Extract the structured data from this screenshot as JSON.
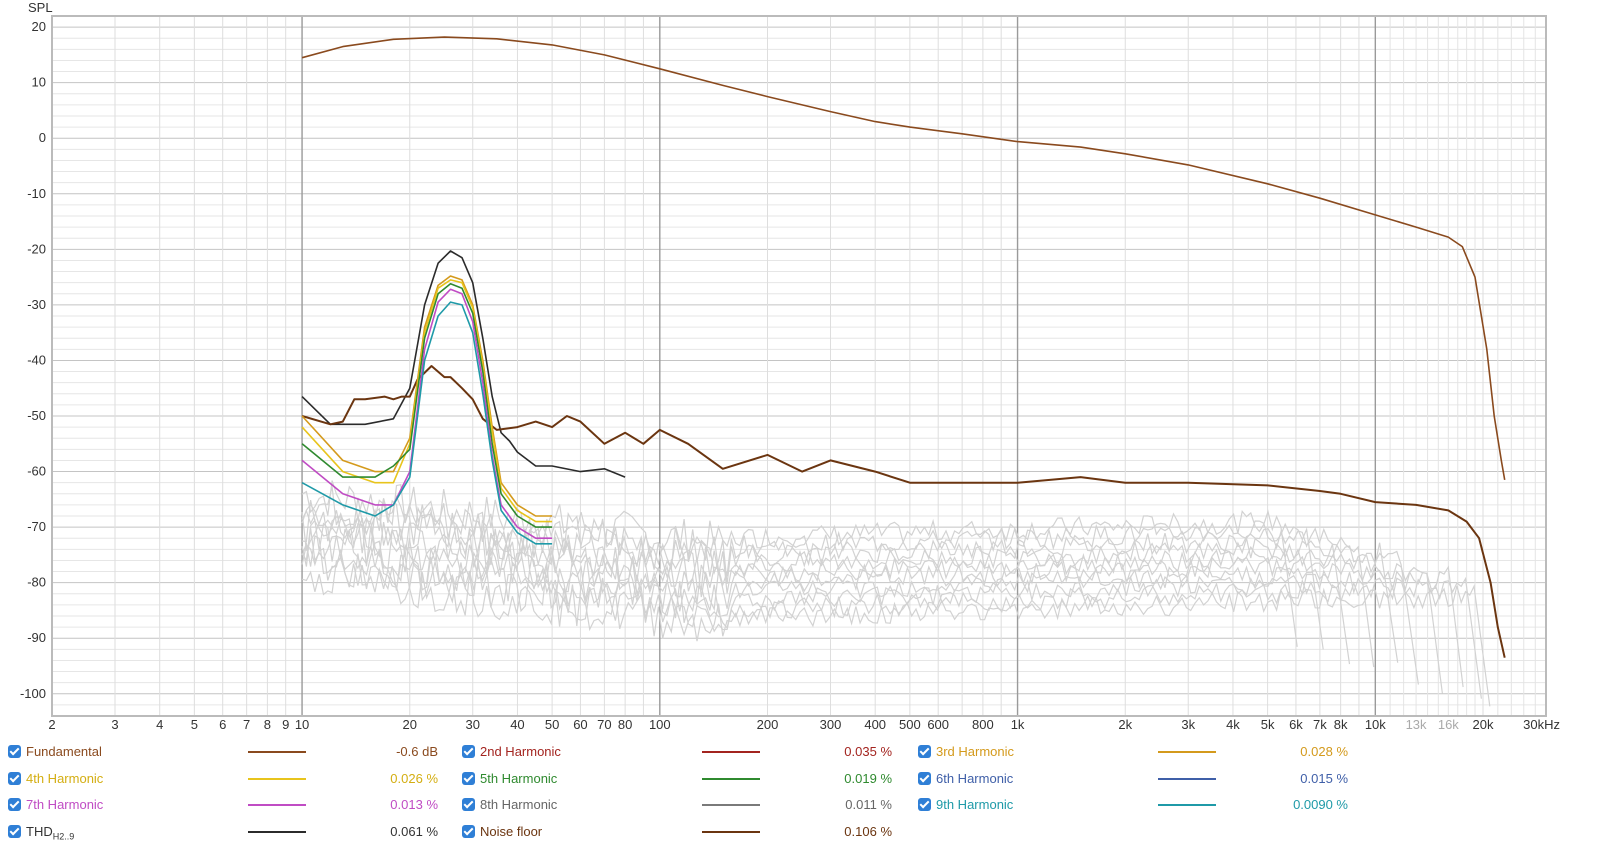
{
  "chart_data": {
    "type": "line",
    "ylabel": "SPL",
    "x_scale": "log",
    "xlim": [
      2,
      30000
    ],
    "ylim": [
      -104,
      22
    ],
    "y_ticks": [
      20,
      10,
      0,
      -10,
      -20,
      -30,
      -40,
      -50,
      -60,
      -70,
      -80,
      -90,
      -100
    ],
    "x_ticks": [
      {
        "v": 2,
        "label": "2"
      },
      {
        "v": 3,
        "label": "3"
      },
      {
        "v": 4,
        "label": "4"
      },
      {
        "v": 5,
        "label": "5"
      },
      {
        "v": 6,
        "label": "6"
      },
      {
        "v": 7,
        "label": "7"
      },
      {
        "v": 8,
        "label": "8"
      },
      {
        "v": 9,
        "label": "9"
      },
      {
        "v": 10,
        "label": "10"
      },
      {
        "v": 20,
        "label": "20"
      },
      {
        "v": 30,
        "label": "30"
      },
      {
        "v": 40,
        "label": "40"
      },
      {
        "v": 50,
        "label": "50"
      },
      {
        "v": 60,
        "label": "60"
      },
      {
        "v": 70,
        "label": "70"
      },
      {
        "v": 80,
        "label": "80"
      },
      {
        "v": 100,
        "label": "100"
      },
      {
        "v": 200,
        "label": "200"
      },
      {
        "v": 300,
        "label": "300"
      },
      {
        "v": 400,
        "label": "400"
      },
      {
        "v": 500,
        "label": "500"
      },
      {
        "v": 600,
        "label": "600"
      },
      {
        "v": 800,
        "label": "800"
      },
      {
        "v": 1000,
        "label": "1k"
      },
      {
        "v": 2000,
        "label": "2k"
      },
      {
        "v": 3000,
        "label": "3k"
      },
      {
        "v": 4000,
        "label": "4k"
      },
      {
        "v": 5000,
        "label": "5k"
      },
      {
        "v": 6000,
        "label": "6k"
      },
      {
        "v": 7000,
        "label": "7k"
      },
      {
        "v": 8000,
        "label": "8k"
      },
      {
        "v": 10000,
        "label": "10k"
      },
      {
        "v": 13000,
        "label": "13k",
        "dim": true
      },
      {
        "v": 16000,
        "label": "16k",
        "dim": true
      },
      {
        "v": 20000,
        "label": "20k"
      },
      {
        "v": 30000,
        "label": "30kHz"
      }
    ],
    "grid": true,
    "series": [
      {
        "name": "Fundamental",
        "color": "#8a4a1e",
        "value": "-0.6 dB",
        "x": [
          10,
          13,
          18,
          25,
          35,
          50,
          70,
          100,
          150,
          200,
          300,
          400,
          500,
          700,
          1000,
          1500,
          2000,
          3000,
          5000,
          7000,
          10000,
          13000,
          16000,
          17500,
          19000,
          20500,
          21500,
          22500,
          23000
        ],
        "y": [
          14.5,
          16.5,
          17.8,
          18.2,
          17.9,
          16.8,
          15.0,
          12.5,
          9.5,
          7.5,
          4.8,
          3.0,
          2.0,
          0.8,
          -0.6,
          -1.6,
          -2.8,
          -4.8,
          -8.2,
          -10.8,
          -13.8,
          -16.0,
          -17.8,
          -19.5,
          -25,
          -38,
          -50,
          -58,
          -61.5
        ]
      },
      {
        "name": "THD",
        "color": "#2b2b2b",
        "value": "0.061 %",
        "x": [
          10,
          12,
          15,
          18,
          20,
          22,
          24,
          26,
          28,
          30,
          32,
          34,
          36,
          38,
          40,
          45,
          50,
          60,
          70,
          80
        ],
        "y": [
          -46.5,
          -51.5,
          -51.5,
          -50.5,
          -45,
          -30,
          -22.5,
          -20.3,
          -21.5,
          -26,
          -36,
          -46.5,
          -53,
          -54.5,
          -56.5,
          -59,
          -59,
          -60,
          -59.5,
          -61
        ]
      },
      {
        "name": "Noise floor",
        "color": "#6b3510",
        "value": "0.106 %",
        "x": [
          10,
          12,
          13,
          14,
          15,
          17,
          18,
          19,
          20,
          21,
          23,
          25,
          26,
          28,
          30,
          32,
          35,
          40,
          45,
          50,
          55,
          60,
          70,
          80,
          90,
          100,
          120,
          150,
          200,
          250,
          300,
          400,
          500,
          700,
          1000,
          1500,
          2000,
          3000,
          5000,
          7000,
          8000,
          10000,
          13000,
          16000,
          18000,
          19500,
          21000,
          22000,
          23000
        ],
        "y": [
          -50,
          -51.5,
          -51,
          -47,
          -47,
          -46.5,
          -47,
          -46.5,
          -46.5,
          -43.5,
          -41,
          -43,
          -43,
          -45,
          -47,
          -50.5,
          -52.5,
          -52,
          -51,
          -52,
          -50,
          -51,
          -55,
          -53,
          -55,
          -52.5,
          -55,
          -59.5,
          -57,
          -60,
          -58,
          -60,
          -62,
          -62,
          -62,
          -61,
          -62,
          -62,
          -62.5,
          -63.5,
          -64,
          -65.5,
          -66,
          -67,
          -69,
          -72,
          -80,
          -88,
          -93.5
        ]
      },
      {
        "name": "2nd Harmonic",
        "color": "#a3241f",
        "value": "0.035 %",
        "x": [],
        "y": []
      },
      {
        "name": "3rd Harmonic",
        "color": "#d49a1c",
        "value": "0.028 %",
        "x": [
          10,
          13,
          16,
          18,
          20,
          22,
          24,
          26,
          28,
          30,
          32,
          34,
          36,
          40,
          45,
          50
        ],
        "y": [
          -50,
          -58,
          -60,
          -60,
          -54,
          -34,
          -26.5,
          -24.8,
          -25.5,
          -30,
          -40,
          -52,
          -62,
          -66,
          -68,
          -68
        ]
      },
      {
        "name": "4th Harmonic",
        "color": "#e8c41c",
        "value": "0.026 %",
        "x": [
          10,
          13,
          16,
          18,
          20,
          22,
          24,
          26,
          28,
          30,
          32,
          34,
          36,
          40,
          45,
          50
        ],
        "y": [
          -52,
          -60,
          -62,
          -62,
          -55,
          -35,
          -27,
          -25.5,
          -26,
          -30.5,
          -41,
          -53,
          -63,
          -67,
          -69,
          -69
        ]
      },
      {
        "name": "5th Harmonic",
        "color": "#2f8a2f",
        "value": "0.019 %",
        "x": [
          10,
          13,
          16,
          18,
          20,
          22,
          24,
          26,
          28,
          30,
          32,
          34,
          36,
          40,
          45,
          50
        ],
        "y": [
          -55,
          -61,
          -61,
          -59,
          -56,
          -36,
          -28,
          -26.2,
          -27,
          -31.5,
          -42,
          -55,
          -64,
          -68,
          -70,
          -70
        ]
      },
      {
        "name": "6th Harmonic",
        "color": "#3f5fa8",
        "value": "0.015 %",
        "x": [],
        "y": []
      },
      {
        "name": "7th Harmonic",
        "color": "#c04cc4",
        "value": "0.013 %",
        "x": [
          10,
          13,
          16,
          18,
          20,
          22,
          24,
          26,
          28,
          30,
          32,
          34,
          36,
          40,
          45,
          50
        ],
        "y": [
          -58,
          -64,
          -66,
          -66,
          -60,
          -38,
          -29.5,
          -27.2,
          -28,
          -33,
          -44,
          -57,
          -66,
          -70,
          -72,
          -72
        ]
      },
      {
        "name": "8th Harmonic",
        "color": "#7a7a7a",
        "value": "0.011 %",
        "x": [],
        "y": []
      },
      {
        "name": "9th Harmonic",
        "color": "#1f9aa8",
        "value": "0.0090 %",
        "x": [
          10,
          13,
          16,
          18,
          20,
          22,
          24,
          26,
          28,
          30,
          32,
          34,
          36,
          40,
          45,
          50
        ],
        "y": [
          -62,
          -66,
          -68,
          -66,
          -61,
          -40,
          -32,
          -29.5,
          -30,
          -35,
          -46,
          -58,
          -67,
          -71,
          -73,
          -73
        ]
      }
    ],
    "legend": [
      [
        {
          "name": "Fundamental",
          "color": "#8a4a1e",
          "text_color": "#8a4a1e",
          "value": "-0.6 dB"
        },
        {
          "name": "2nd Harmonic",
          "color": "#a3241f",
          "text_color": "#a3241f",
          "value": "0.035 %"
        },
        {
          "name": "3rd Harmonic",
          "color": "#d49a1c",
          "text_color": "#d49a1c",
          "value": "0.028 %"
        }
      ],
      [
        {
          "name": "4th Harmonic",
          "color": "#e8c41c",
          "text_color": "#d4ae12",
          "value": "0.026 %"
        },
        {
          "name": "5th Harmonic",
          "color": "#2f8a2f",
          "text_color": "#2f8a2f",
          "value": "0.019 %"
        },
        {
          "name": "6th Harmonic",
          "color": "#3f5fa8",
          "text_color": "#3f5fa8",
          "value": "0.015 %"
        }
      ],
      [
        {
          "name": "7th Harmonic",
          "color": "#c04cc4",
          "text_color": "#c04cc4",
          "value": "0.013 %"
        },
        {
          "name": "8th Harmonic",
          "color": "#7a7a7a",
          "text_color": "#666666",
          "value": "0.011 %"
        },
        {
          "name": "9th Harmonic",
          "color": "#1f9aa8",
          "text_color": "#1f9aa8",
          "value": "0.0090 %"
        }
      ],
      [
        {
          "name": "THD",
          "sub": "H2..9",
          "color": "#2b2b2b",
          "text_color": "#333333",
          "value": "0.061 %"
        },
        {
          "name": "Noise floor",
          "color": "#6b3510",
          "text_color": "#6b3510",
          "value": "0.106 %"
        }
      ]
    ]
  }
}
